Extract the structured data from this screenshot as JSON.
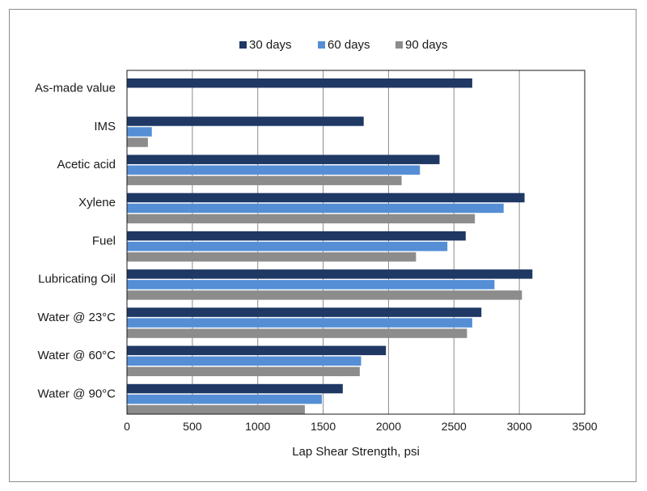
{
  "chart_data": {
    "type": "bar",
    "orientation": "horizontal",
    "categories": [
      "As-made value",
      "IMS",
      "Acetic acid",
      "Xylene",
      "Fuel",
      "Lubricating Oil",
      "Water @ 23°C",
      "Water @ 60°C",
      "Water @ 90°C"
    ],
    "series": [
      {
        "name": "30 days",
        "color": "#1f3864",
        "values": [
          2640,
          1810,
          2390,
          3040,
          2590,
          3100,
          2710,
          1980,
          1650
        ]
      },
      {
        "name": "60 days",
        "color": "#558ed5",
        "values": [
          null,
          190,
          2240,
          2880,
          2450,
          2810,
          2640,
          1790,
          1490
        ]
      },
      {
        "name": "90 days",
        "color": "#8c8c8c",
        "values": [
          null,
          160,
          2100,
          2660,
          2210,
          3020,
          2600,
          1780,
          1360
        ]
      }
    ],
    "xlabel": "Lap Shear Strength, psi",
    "ylabel": "",
    "title": "",
    "xlim": [
      0,
      3500
    ],
    "xticks": [
      0,
      500,
      1000,
      1500,
      2000,
      2500,
      3000,
      3500
    ],
    "grid": "vertical",
    "legend": "top"
  }
}
